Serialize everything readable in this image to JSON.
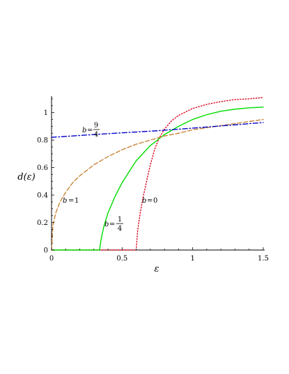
{
  "chart_data": {
    "type": "line",
    "title": "",
    "xlabel": "ε",
    "ylabel": "d(ε)",
    "xlim": [
      0,
      1.5
    ],
    "ylim": [
      0,
      1.12
    ],
    "grid": false,
    "legend": "none",
    "x_ticks": [
      "0",
      "0.5",
      "1",
      "1.5"
    ],
    "y_ticks": [
      "0",
      "0.2",
      "0.4",
      "0.6",
      "0.8",
      "1"
    ],
    "series": [
      {
        "b": "0",
        "color": "#e0001a",
        "style": "dotted",
        "x": [
          0,
          0.3,
          0.6,
          0.61,
          0.63,
          0.65,
          0.68,
          0.7,
          0.73,
          0.76,
          0.8,
          0.85,
          0.9,
          1.0,
          1.1,
          1.2,
          1.3,
          1.4,
          1.5
        ],
        "y": [
          0,
          0,
          0,
          0.14,
          0.28,
          0.39,
          0.53,
          0.62,
          0.73,
          0.81,
          0.88,
          0.94,
          0.98,
          1.03,
          1.06,
          1.08,
          1.095,
          1.1,
          1.11
        ]
      },
      {
        "b": "1/4",
        "color": "#00dd00",
        "style": "solid",
        "x": [
          0,
          0.2,
          0.34,
          0.35,
          0.37,
          0.4,
          0.45,
          0.5,
          0.55,
          0.6,
          0.7,
          0.8,
          0.9,
          1.0,
          1.1,
          1.2,
          1.3,
          1.4,
          1.5
        ],
        "y": [
          0,
          0,
          0,
          0.07,
          0.17,
          0.27,
          0.39,
          0.49,
          0.57,
          0.65,
          0.76,
          0.84,
          0.9,
          0.95,
          0.985,
          1.01,
          1.025,
          1.035,
          1.04
        ]
      },
      {
        "b": "1",
        "color": "#c8853a",
        "style": "dashed",
        "x": [
          0,
          0.01,
          0.03,
          0.06,
          0.1,
          0.15,
          0.2,
          0.3,
          0.4,
          0.5,
          0.6,
          0.7,
          0.8,
          0.9,
          1.0,
          1.1,
          1.2,
          1.3,
          1.4,
          1.5
        ],
        "y": [
          0,
          0.18,
          0.27,
          0.35,
          0.42,
          0.49,
          0.54,
          0.62,
          0.68,
          0.73,
          0.77,
          0.8,
          0.83,
          0.85,
          0.875,
          0.89,
          0.905,
          0.92,
          0.935,
          0.95
        ]
      },
      {
        "b": "9/4",
        "color": "#0000cc",
        "style": "dash-dot",
        "x": [
          0,
          0.25,
          0.5,
          0.75,
          1.0,
          1.25,
          1.5
        ],
        "y": [
          0.82,
          0.837,
          0.853,
          0.868,
          0.887,
          0.907,
          0.928
        ]
      }
    ],
    "annotations": [
      {
        "name": "b",
        "eq": "=",
        "num": "9",
        "den": "4"
      },
      {
        "name": "b",
        "eq": "=",
        "value": "1"
      },
      {
        "name": "b",
        "eq": "=",
        "num": "1",
        "den": "4"
      },
      {
        "name": "b",
        "eq": "=",
        "value": "0"
      }
    ]
  }
}
